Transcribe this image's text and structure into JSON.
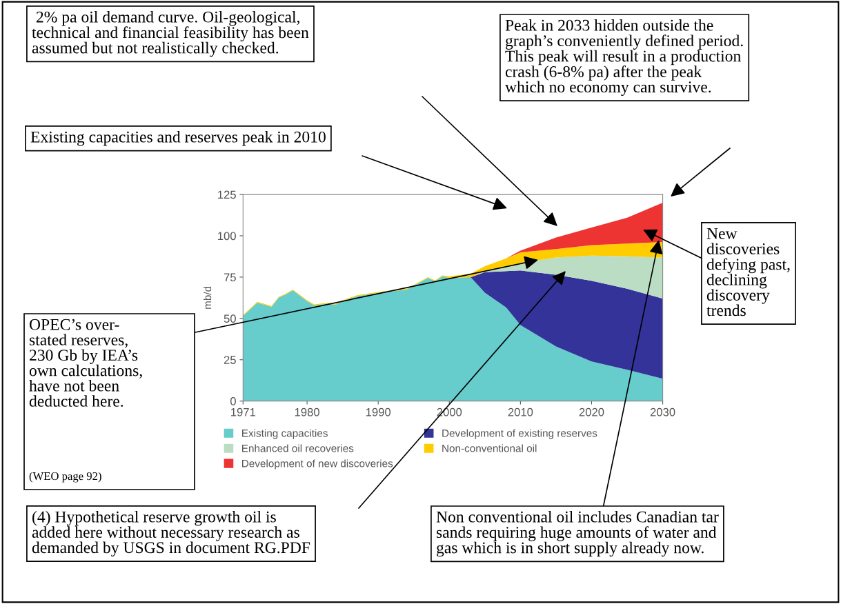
{
  "chart_data": {
    "type": "area",
    "stacked": true,
    "ylabel": "mb/d",
    "x": [
      1971,
      1973,
      1975,
      1976,
      1977,
      1978,
      1980,
      1981,
      1983,
      1984,
      1985,
      1987,
      1990,
      1994,
      1997,
      1998,
      1999,
      2000,
      2003,
      2005,
      2008,
      2010,
      2015,
      2020,
      2025,
      2030
    ],
    "series": [
      {
        "name": "Existing capacities",
        "color": "#66cccc",
        "values": [
          51.5,
          59.5,
          57,
          62.5,
          64.5,
          67,
          60.5,
          58,
          59,
          58.3,
          60.5,
          63.5,
          65.5,
          67.5,
          74.5,
          72.5,
          75.5,
          74.5,
          75,
          65.6,
          56.6,
          46,
          33,
          24,
          19,
          13.5
        ]
      },
      {
        "name": "Development of existing reserves",
        "color": "#333399",
        "values": [
          0,
          0,
          0,
          0,
          0,
          0,
          0,
          0,
          0,
          0,
          0,
          0,
          0,
          0,
          0,
          0,
          0,
          0,
          0,
          12.4,
          22,
          33,
          43.4,
          48.8,
          49,
          48.5
        ]
      },
      {
        "name": "Enhanced oil recoveries",
        "color": "#bbddc4",
        "values": [
          0,
          0,
          0,
          0,
          0,
          0,
          0,
          0,
          0,
          0,
          0,
          0,
          0,
          0,
          0,
          0,
          0,
          0,
          0,
          0.6,
          2.4,
          4.6,
          10.5,
          15.2,
          19.6,
          24.7
        ]
      },
      {
        "name": "Non-conventional oil",
        "color": "#ffcc00",
        "values": [
          0.5,
          0.5,
          0.5,
          0.5,
          0.5,
          0.5,
          0.5,
          0.5,
          0.5,
          0.5,
          0.5,
          0.5,
          0.5,
          0.5,
          0.5,
          0.5,
          0.5,
          1,
          2,
          3,
          5.3,
          6.4,
          5.1,
          6.4,
          7.7,
          9.5
        ]
      },
      {
        "name": "Development of new discoveries",
        "color": "#ee3333",
        "values": [
          0,
          0,
          0,
          0,
          0,
          0,
          0,
          0,
          0,
          0,
          0,
          0,
          0,
          0,
          0,
          0,
          0,
          0,
          0,
          0,
          0,
          1,
          7,
          10.6,
          15.7,
          23.8
        ]
      }
    ],
    "xlim": [
      1971,
      2030
    ],
    "xticks": [
      1971,
      1980,
      1990,
      2000,
      2010,
      2020,
      2030
    ],
    "ylim": [
      0,
      125
    ],
    "yticks": [
      0,
      25,
      50,
      75,
      100,
      125
    ],
    "grid": false,
    "legend": "bottom",
    "annotations": [
      " 2% pa oil demand curve. Oil-geological,\ntechnical and financial feasibility has been\nassumed but not realistically checked.",
      "Peak in 2033 hidden outside the\ngraph’s conveniently defined period.\nThis peak will result in a production\ncrash (6-8% pa) after the peak\nwhich no economy can survive.",
      "Existing capacities and reserves peak in 2010",
      "New\ndiscoveries\ndefying past,\ndeclining\ndiscovery\ntrends",
      "OPEC’s over-\nstated reserves,\n230 Gb by IEA’s\nown calculations,\nhave not been\ndeducted here.",
      "(WEO page 92)",
      "(4) Hypothetical reserve growth oil is\nadded here without necessary research as\ndemanded by USGS in document RG.PDF",
      "Non conventional oil includes Canadian tar\nsands requiring huge amounts of water and\ngas which is in short supply already now."
    ]
  }
}
